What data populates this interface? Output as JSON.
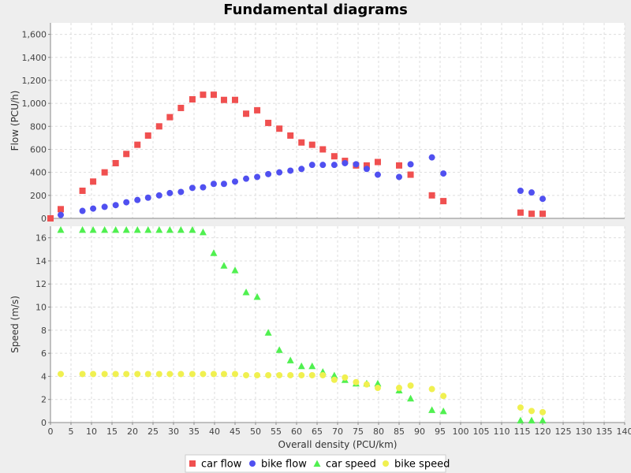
{
  "chart_data": {
    "title": "Fundamental diagrams",
    "xlabel": "Overall density (PCU/km)",
    "xlim": [
      0,
      140
    ],
    "xticks": [
      0,
      5,
      10,
      15,
      20,
      25,
      30,
      35,
      40,
      45,
      50,
      55,
      60,
      65,
      70,
      75,
      80,
      85,
      90,
      95,
      100,
      105,
      110,
      115,
      120,
      125,
      130,
      135,
      140
    ],
    "legend_position": "bottom",
    "grid": true,
    "panels": [
      {
        "type": "scatter",
        "ylabel": "Flow (PCU/h)",
        "ylim": [
          0,
          1700
        ],
        "yticks": [
          0,
          200,
          400,
          600,
          800,
          1000,
          1200,
          1400,
          1600
        ],
        "ytick_labels": [
          "0",
          "200",
          "400",
          "600",
          "800",
          "1,000",
          "1,200",
          "1,400",
          "1,600"
        ],
        "series": [
          {
            "name": "car flow",
            "color": "#f05050",
            "marker": "square",
            "x": [
              0,
              2.5,
              7.8,
              10.4,
              13.2,
              15.9,
              18.5,
              21.2,
              23.8,
              26.5,
              29.1,
              31.8,
              34.6,
              37.2,
              39.8,
              42.3,
              45.0,
              47.7,
              50.4,
              53.1,
              55.8,
              58.5,
              61.2,
              63.8,
              66.4,
              69.2,
              71.8,
              74.5,
              77.1,
              79.8,
              85.0,
              87.8,
              93.0,
              95.8,
              114.6,
              117.3,
              120.0
            ],
            "y": [
              0,
              80,
              240,
              320,
              400,
              480,
              560,
              640,
              720,
              800,
              880,
              960,
              1035,
              1075,
              1075,
              1030,
              1030,
              910,
              940,
              830,
              780,
              720,
              660,
              640,
              600,
              540,
              500,
              460,
              460,
              490,
              460,
              380,
              200,
              150,
              50,
              40,
              40
            ]
          },
          {
            "name": "bike flow",
            "color": "#5050f0",
            "marker": "circle",
            "x": [
              2.5,
              7.8,
              10.4,
              13.2,
              15.9,
              18.5,
              21.2,
              23.8,
              26.5,
              29.1,
              31.8,
              34.6,
              37.2,
              39.8,
              42.3,
              45.0,
              47.7,
              50.4,
              53.1,
              55.8,
              58.5,
              61.2,
              63.8,
              66.4,
              69.2,
              71.8,
              74.5,
              77.1,
              79.8,
              85.0,
              87.8,
              93.0,
              95.8,
              114.6,
              117.3,
              120.0
            ],
            "y": [
              30,
              65,
              85,
              100,
              115,
              140,
              160,
              180,
              200,
              220,
              230,
              265,
              270,
              300,
              300,
              320,
              345,
              360,
              385,
              400,
              415,
              430,
              465,
              465,
              465,
              480,
              470,
              430,
              380,
              360,
              470,
              530,
              390,
              240,
              225,
              170
            ]
          }
        ]
      },
      {
        "type": "scatter",
        "ylabel": "Speed (m/s)",
        "ylim": [
          0,
          17
        ],
        "yticks": [
          0,
          2,
          4,
          6,
          8,
          10,
          12,
          14,
          16
        ],
        "ytick_labels": [
          "0",
          "2",
          "4",
          "6",
          "8",
          "10",
          "12",
          "14",
          "16"
        ],
        "series": [
          {
            "name": "car speed",
            "color": "#50f050",
            "marker": "triangle",
            "x": [
              2.5,
              7.8,
              10.4,
              13.2,
              15.9,
              18.5,
              21.2,
              23.8,
              26.5,
              29.1,
              31.8,
              34.6,
              37.2,
              39.8,
              42.3,
              45.0,
              47.7,
              50.4,
              53.1,
              55.8,
              58.5,
              61.2,
              63.8,
              66.4,
              69.2,
              71.8,
              74.5,
              77.1,
              79.8,
              85.0,
              87.8,
              93.0,
              95.8,
              114.6,
              117.3,
              120.0
            ],
            "y": [
              16.7,
              16.7,
              16.7,
              16.7,
              16.7,
              16.7,
              16.7,
              16.7,
              16.7,
              16.7,
              16.7,
              16.7,
              16.5,
              14.7,
              13.6,
              13.2,
              11.3,
              10.9,
              7.8,
              6.3,
              5.4,
              4.9,
              4.9,
              4.4,
              4.1,
              3.7,
              3.4,
              3.4,
              3.4,
              2.8,
              2.1,
              1.1,
              1.0,
              0.2,
              0.2,
              0.2
            ]
          },
          {
            "name": "bike speed",
            "color": "#f0f050",
            "marker": "circle",
            "x": [
              2.5,
              7.8,
              10.4,
              13.2,
              15.9,
              18.5,
              21.2,
              23.8,
              26.5,
              29.1,
              31.8,
              34.6,
              37.2,
              39.8,
              42.3,
              45.0,
              47.7,
              50.4,
              53.1,
              55.8,
              58.5,
              61.2,
              63.8,
              66.4,
              69.2,
              71.8,
              74.5,
              77.1,
              79.8,
              85.0,
              87.8,
              93.0,
              95.8,
              114.6,
              117.3,
              120.0
            ],
            "y": [
              4.2,
              4.2,
              4.2,
              4.2,
              4.2,
              4.2,
              4.2,
              4.2,
              4.2,
              4.2,
              4.2,
              4.2,
              4.2,
              4.2,
              4.2,
              4.2,
              4.1,
              4.1,
              4.1,
              4.1,
              4.1,
              4.1,
              4.1,
              4.1,
              3.7,
              3.9,
              3.5,
              3.3,
              3.0,
              3.0,
              3.2,
              2.9,
              2.3,
              1.3,
              1.0,
              0.9
            ]
          }
        ]
      }
    ]
  }
}
